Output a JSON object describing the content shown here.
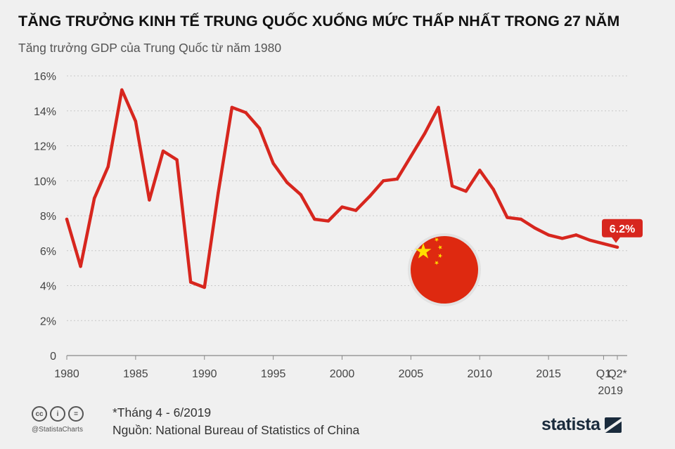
{
  "header": {
    "title": "TĂNG TRƯỞNG KINH TẾ TRUNG QUỐC XUỐNG MỨC THẤP NHẤT TRONG 27 NĂM",
    "subtitle": "Tăng trưởng GDP của Trung Quốc từ năm 1980"
  },
  "chart_data": {
    "type": "line",
    "title": "Tăng trưởng GDP của Trung Quốc từ năm 1980",
    "xlabel": "",
    "ylabel": "",
    "ylim": [
      0,
      16
    ],
    "y_ticks": [
      0,
      2,
      4,
      6,
      8,
      10,
      12,
      14,
      16
    ],
    "y_tick_labels": [
      "0",
      "2%",
      "4%",
      "6%",
      "8%",
      "10%",
      "12%",
      "14%",
      "16%"
    ],
    "x_tick_labels": [
      "1980",
      "1985",
      "1990",
      "1995",
      "2000",
      "2005",
      "2010",
      "2015",
      "Q1",
      "Q2*"
    ],
    "x_extra_label": "2019",
    "series": [
      {
        "name": "Tăng trưởng GDP (%)",
        "color": "#d7261e",
        "labels": [
          "1980",
          "1981",
          "1982",
          "1983",
          "1984",
          "1985",
          "1986",
          "1987",
          "1988",
          "1989",
          "1990",
          "1991",
          "1992",
          "1993",
          "1994",
          "1995",
          "1996",
          "1997",
          "1998",
          "1999",
          "2000",
          "2001",
          "2002",
          "2003",
          "2004",
          "2005",
          "2006",
          "2007",
          "2008",
          "2009",
          "2010",
          "2011",
          "2012",
          "2013",
          "2014",
          "2015",
          "2016",
          "2017",
          "2018",
          "2019 Q1",
          "2019 Q2"
        ],
        "values": [
          7.8,
          5.1,
          9.0,
          10.8,
          15.2,
          13.4,
          8.9,
          11.7,
          11.2,
          4.2,
          3.9,
          9.3,
          14.2,
          13.9,
          13.0,
          11.0,
          9.9,
          9.2,
          7.8,
          7.7,
          8.5,
          8.3,
          9.1,
          10.0,
          10.1,
          11.4,
          12.7,
          14.2,
          9.7,
          9.4,
          10.6,
          9.5,
          7.9,
          7.8,
          7.3,
          6.9,
          6.7,
          6.9,
          6.6,
          6.4,
          6.2
        ]
      }
    ],
    "annotation": "6.2%"
  },
  "colors": {
    "line": "#d7261e",
    "badge": "#d7261e",
    "flag_red": "#de2910",
    "flag_star": "#ffde00"
  },
  "footer": {
    "note": "*Tháng 4 - 6/2019",
    "source": "Nguồn: National Bureau of Statistics of China",
    "handle": "@StatistaCharts",
    "brand": "statista",
    "cc_icons": [
      "cc",
      "i",
      "="
    ]
  }
}
